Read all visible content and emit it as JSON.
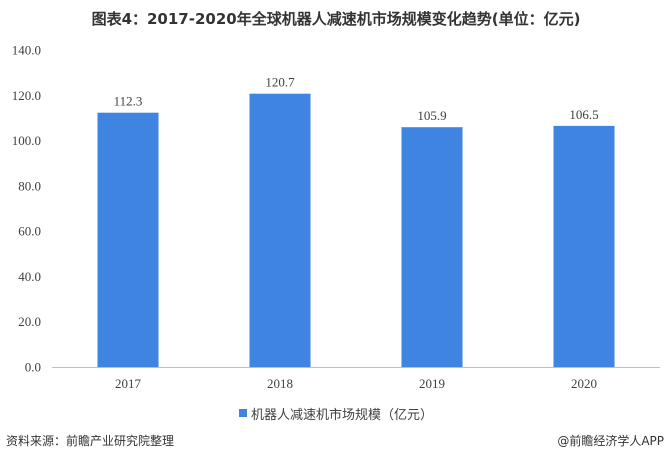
{
  "chart_data": {
    "type": "bar",
    "title": "图表4：2017-2020年全球机器人减速机市场规模变化趋势(单位：亿元)",
    "categories": [
      "2017",
      "2018",
      "2019",
      "2020"
    ],
    "series": [
      {
        "name": "机器人减速机市场规模（亿元）",
        "values": [
          112.3,
          120.7,
          105.9,
          106.5
        ],
        "color": "#3E84E0"
      }
    ],
    "data_labels": [
      "112.3",
      "120.7",
      "105.9",
      "106.5"
    ],
    "y_ticks": [
      "0.0",
      "20.0",
      "40.0",
      "60.0",
      "80.0",
      "100.0",
      "120.0",
      "140.0"
    ],
    "ylim": [
      0,
      140
    ],
    "xlabel": "",
    "ylabel": "",
    "grid": false,
    "legend_position": "bottom"
  },
  "footer": {
    "source": "资料来源：前瞻产业研究院整理",
    "brand": "@前瞻经济学人APP"
  }
}
